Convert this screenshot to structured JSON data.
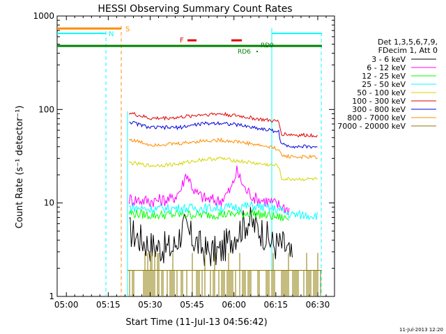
{
  "chart_data": {
    "type": "line",
    "title": "HESSI Observing Summary Count Rates",
    "xlabel": "Start Time (11-Jul-13 04:56:42)",
    "ylabel": "Count Rate (s⁻¹ detector⁻¹)",
    "yscale": "log",
    "ylim": [
      1,
      1000
    ],
    "xlim_minutes": [
      296.7,
      396
    ],
    "x_ticks": [
      "05:00",
      "05:15",
      "05:30",
      "05:45",
      "06:00",
      "06:15",
      "06:30"
    ],
    "x_tick_minutes": [
      300,
      315,
      330,
      345,
      360,
      375,
      390
    ],
    "y_ticks": [
      "1",
      "10",
      "100",
      "1000"
    ],
    "y_tick_values": [
      1,
      10,
      100,
      1000
    ],
    "legend_header": [
      "Det 1,3,5,6,7,9,",
      "FDecim 1, Att 0"
    ],
    "legend_placement": "right",
    "series": [
      {
        "name": "3 - 6 keV",
        "color": "#000000",
        "x": [
          322.5,
          330,
          338,
          342,
          345,
          350,
          355,
          360,
          365,
          370,
          374,
          378,
          381
        ],
        "values": [
          5,
          3.5,
          3.2,
          5.5,
          4.2,
          3,
          3,
          4.5,
          6.5,
          5,
          3.6,
          3.5,
          2.4
        ]
      },
      {
        "name": "6 - 12 keV",
        "color": "#ff00ff",
        "x": [
          322.5,
          330,
          338,
          341,
          343,
          346,
          350,
          355,
          359,
          361,
          364,
          368,
          372,
          376,
          380
        ],
        "values": [
          11,
          10.5,
          11,
          14,
          21,
          13,
          11,
          10.5,
          14,
          22,
          14,
          11,
          10.5,
          9.5,
          8.5
        ]
      },
      {
        "name": "12 - 25 keV",
        "color": "#00ff00",
        "x": [
          322.5,
          330,
          340,
          350,
          360,
          366,
          370,
          376,
          380
        ],
        "values": [
          7.8,
          7.4,
          7.5,
          7.5,
          7.6,
          7.8,
          7.5,
          7,
          6.8
        ]
      },
      {
        "name": "25 - 50 keV",
        "color": "#00ffff",
        "x": [
          322.5,
          330,
          340,
          350,
          360,
          366,
          370,
          376,
          380,
          385,
          390
        ],
        "values": [
          9,
          8.6,
          8.8,
          8.8,
          9,
          9.3,
          9,
          8.5,
          7.5,
          7.4,
          7.4
        ]
      },
      {
        "name": "50 - 100 keV",
        "color": "#d4d400",
        "x": [
          322.5,
          330,
          340,
          348,
          355,
          362,
          370,
          376,
          377,
          382,
          390
        ],
        "values": [
          27,
          25,
          26,
          29,
          30,
          28,
          26,
          25,
          18,
          18,
          18
        ]
      },
      {
        "name": "100 - 300 keV",
        "color": "#e00000",
        "x": [
          322.5,
          330,
          340,
          348,
          355,
          362,
          370,
          376,
          377,
          383,
          390
        ],
        "values": [
          92,
          80,
          82,
          88,
          90,
          85,
          78,
          74,
          55,
          53,
          53
        ]
      },
      {
        "name": "300 - 800 keV",
        "color": "#0000dd",
        "x": [
          322.5,
          330,
          340,
          348,
          355,
          362,
          370,
          376,
          377,
          383,
          390
        ],
        "values": [
          74,
          64,
          64,
          70,
          72,
          68,
          62,
          58,
          42,
          40,
          40
        ]
      },
      {
        "name": "800 - 7000 keV",
        "color": "#ff8c00",
        "x": [
          322.5,
          330,
          340,
          348,
          355,
          362,
          370,
          376,
          377,
          383,
          390
        ],
        "values": [
          48,
          42,
          43,
          46,
          47,
          45,
          41,
          38,
          32,
          31,
          31
        ]
      },
      {
        "name": "7000 - 20000 keV",
        "color": "#8b7a00",
        "x": [
          322.5,
          390
        ],
        "values": [
          1.9,
          1.9
        ]
      }
    ],
    "flags": {
      "S": {
        "label": "S",
        "color": "#ff8c00",
        "x_end": 318.5,
        "y": 800
      },
      "N": {
        "label": "N",
        "color": "#00ffff",
        "x_end": 315,
        "y": 660
      },
      "F": {
        "label": "F",
        "color": "#e00000",
        "segments": [
          [
            339.5,
            342.5
          ],
          [
            359.5,
            362.5
          ]
        ],
        "y": 580
      },
      "RD9": {
        "label": "RD9",
        "color": "#008000"
      },
      "RD6": {
        "label": "RD6",
        "color": "#008000"
      }
    }
  },
  "footer_timestamp": "11-Jul-2013 12:20"
}
